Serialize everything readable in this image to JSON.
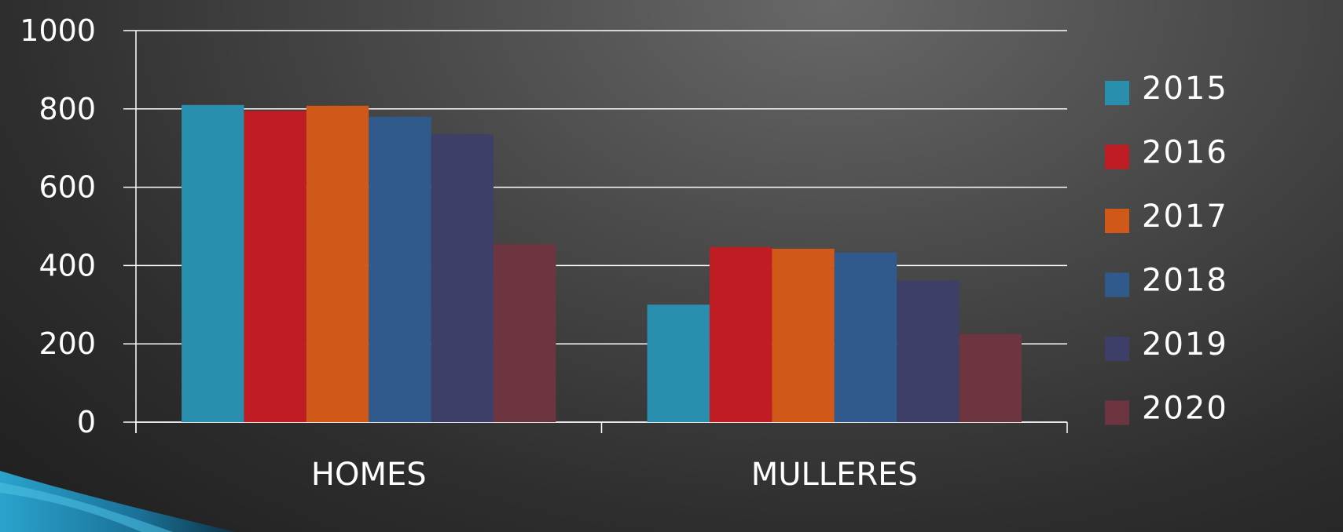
{
  "chart_data": {
    "type": "bar",
    "title": "",
    "xlabel": "",
    "ylabel": "",
    "categories": [
      "HOMES",
      "MULLERES"
    ],
    "ylim": [
      0,
      1000
    ],
    "yticks": [
      0,
      200,
      400,
      600,
      800,
      1000
    ],
    "grid": true,
    "legend_position": "right",
    "series": [
      {
        "name": "2015",
        "color": "#2a8fae",
        "values": [
          810,
          300
        ]
      },
      {
        "name": "2016",
        "color": "#c01c24",
        "values": [
          795,
          447
        ]
      },
      {
        "name": "2017",
        "color": "#d05818",
        "values": [
          808,
          443
        ]
      },
      {
        "name": "2018",
        "color": "#305a8c",
        "values": [
          780,
          433
        ]
      },
      {
        "name": "2019",
        "color": "#3d3f68",
        "values": [
          735,
          362
        ]
      },
      {
        "name": "2020",
        "color": "#6d3540",
        "values": [
          455,
          225
        ]
      }
    ]
  }
}
